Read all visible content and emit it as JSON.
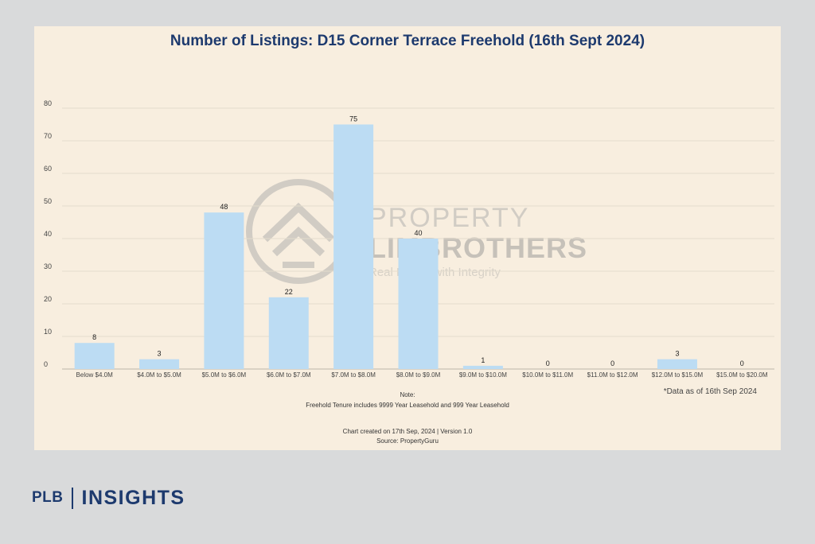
{
  "brand": {
    "prefix": "PLB",
    "name": "INSIGHTS",
    "color": "#1d3a6e"
  },
  "watermark": {
    "line1": "PROPERTY",
    "line2": "LIMBROTHERS",
    "tagline": "Real Estate with Integrity",
    "icon": "house-circle-logo"
  },
  "footer": {
    "as_of": "*Data as of 16th Sep 2024",
    "note_label": "Note:",
    "note_text": "Freehold Tenure includes 9999 Year Leasehold and 999 Year Leasehold",
    "created": "Chart created on 17th Sep, 2024 | Version 1.0",
    "source": "Source: PropertyGuru"
  },
  "chart_data": {
    "type": "bar",
    "title": "Number of Listings: D15 Corner Terrace Freehold (16th Sept 2024)",
    "xlabel": "",
    "ylabel": "",
    "categories": [
      "Below $4.0M",
      "$4.0M to $5.0M",
      "$5.0M to $6.0M",
      "$6.0M to $7.0M",
      "$7.0M to $8.0M",
      "$8.0M to $9.0M",
      "$9.0M to $10.0M",
      "$10.0M to $11.0M",
      "$11.0M to $12.0M",
      "$12.0M to $15.0M",
      "$15.0M to $20.0M"
    ],
    "values": [
      8,
      3,
      48,
      22,
      75,
      40,
      1,
      0,
      0,
      3,
      0
    ],
    "data_labels": [
      "8",
      "3",
      "48",
      "22",
      "75",
      "40",
      "1",
      "0",
      "0",
      "3",
      "0"
    ],
    "ylim": [
      0,
      80
    ],
    "yticks": [
      "0",
      "10",
      "20",
      "30",
      "40",
      "50",
      "60",
      "70",
      "80"
    ],
    "grid": true,
    "legend": "none",
    "bar_color": "#bcdcf3",
    "grid_color": "#e4dccd",
    "title_color": "#1d3a6e"
  }
}
